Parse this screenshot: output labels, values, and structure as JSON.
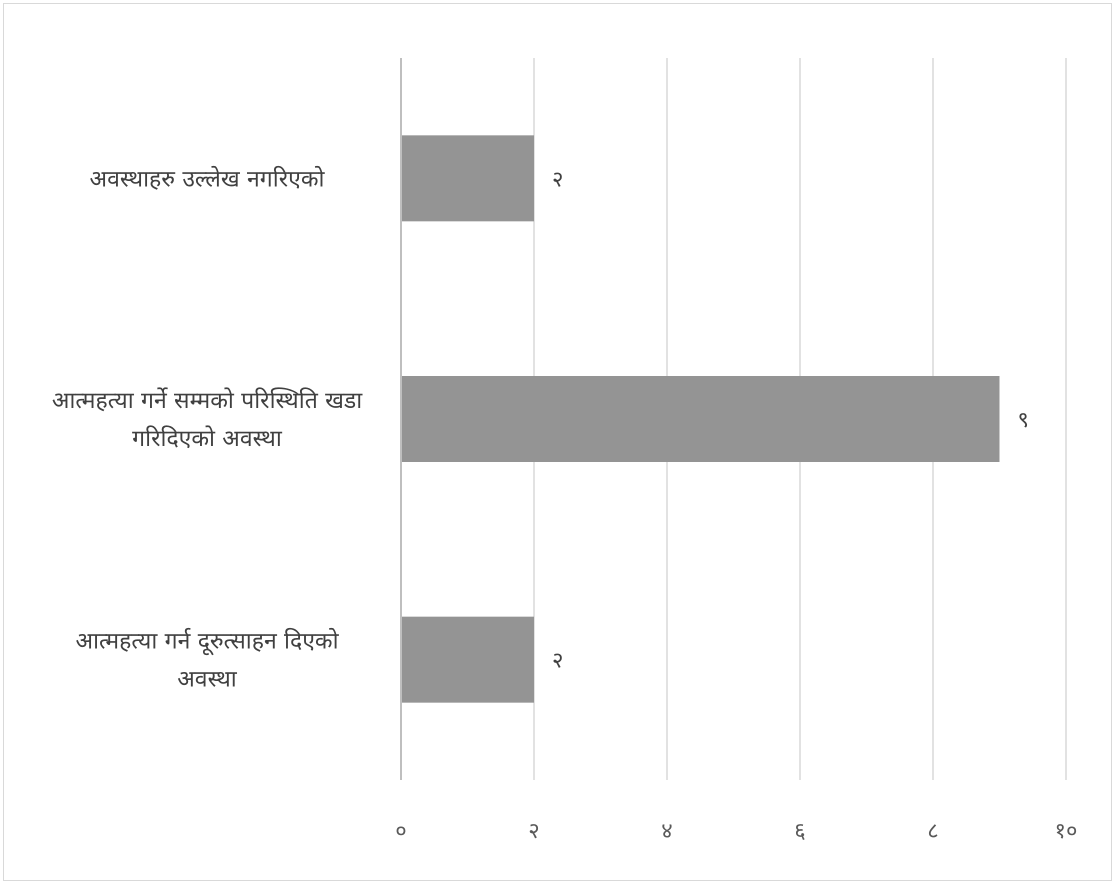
{
  "chart_data": {
    "type": "bar",
    "orientation": "horizontal",
    "categories": [
      [
        "अवस्थाहरु उल्लेख नगरिएको"
      ],
      [
        "आत्महत्या गर्ने सम्मको परिस्थिति खडा",
        "गरिदिएको अवस्था"
      ],
      [
        "आत्महत्या गर्न दूरुत्साहन दिएको",
        "अवस्था"
      ]
    ],
    "values": [
      2,
      9,
      2
    ],
    "data_labels": [
      "२",
      "९",
      "२"
    ],
    "xlim": [
      0,
      10
    ],
    "ticks": [
      0,
      2,
      4,
      6,
      8,
      10
    ],
    "tick_labels": [
      "०",
      "२",
      "४",
      "६",
      "८",
      "१०"
    ],
    "grid": true,
    "legend": "none",
    "title": "",
    "xlabel": "",
    "ylabel": "",
    "colors": {
      "bar": "#949494",
      "grid": "#d9d9d9",
      "axis": "#bfbfbf"
    }
  }
}
